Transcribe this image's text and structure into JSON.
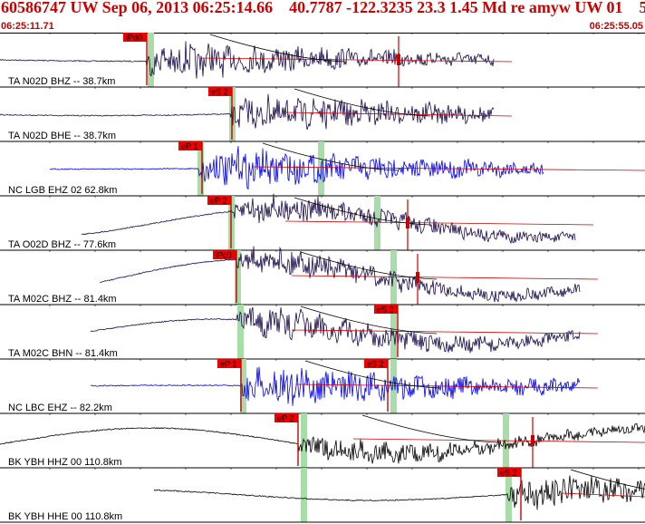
{
  "header": {
    "title": "60586747 UW Sep 06, 2013 06:25:14.66    40.7787 -122.3235 23.3 1.45 Md re amyw UW 01    5",
    "time_start": "06:25:11.71",
    "time_end": "06:25:55.05"
  },
  "traces": [
    {
      "label": "TA N02D BHZ -- 38.7km",
      "color": "#1a0a4a",
      "style": "burst",
      "picks": [
        {
          "label": "iPd0"
        }
      ],
      "pick_lines": [
        {
          "color": "#cc0000"
        }
      ]
    },
    {
      "label": "TA N02D BHE -- 38.7km",
      "color": "#1a0a4a",
      "style": "burst",
      "picks": [
        {
          "label": "eS 2"
        }
      ],
      "pick_lines": []
    },
    {
      "label": "NC LGB EHZ 02 62.8km",
      "color": "#0000ee",
      "style": "burst",
      "picks": [
        {
          "label": "eP 1"
        }
      ],
      "pick_lines": []
    },
    {
      "label": "TA O02D BHZ -- 77.6km",
      "color": "#1a0a4a",
      "style": "wave",
      "picks": [
        {
          "label": "eP 2"
        }
      ],
      "pick_lines": [
        {
          "color": "#cc0000"
        }
      ]
    },
    {
      "label": "TA M02C BHZ -- 81.4km",
      "color": "#1a0a4a",
      "style": "wave",
      "picks": [
        {
          "label": "iPc0"
        }
      ],
      "pick_lines": [
        {
          "color": "#cc0000"
        }
      ]
    },
    {
      "label": "TA M02C BHN -- 81.4km",
      "color": "#1a0a4a",
      "style": "wave",
      "picks": [
        {
          "label": "eS 2"
        }
      ],
      "pick_lines": []
    },
    {
      "label": "NC LBC EHZ -- 82.2km",
      "color": "#0000ee",
      "style": "burst",
      "picks": [
        {
          "label": "eP 1"
        },
        {
          "label": "eS 2"
        }
      ],
      "pick_lines": []
    },
    {
      "label": "BK YBH HHZ 00 110.8km",
      "color": "#000000",
      "style": "wave",
      "picks": [
        {
          "label": "eP 2"
        }
      ],
      "pick_lines": [
        {
          "color": "#cc0000"
        }
      ]
    },
    {
      "label": "BK YBH HHE 00 110.8km",
      "color": "#000000",
      "style": "wave",
      "picks": [
        {
          "label": "eS 2"
        }
      ],
      "pick_lines": []
    }
  ],
  "colors": {
    "pick_box": "#ee0000",
    "pick_text": "#000000",
    "window_band": "#a8dca8",
    "grid": "#000000",
    "trace_label": "#000000"
  }
}
